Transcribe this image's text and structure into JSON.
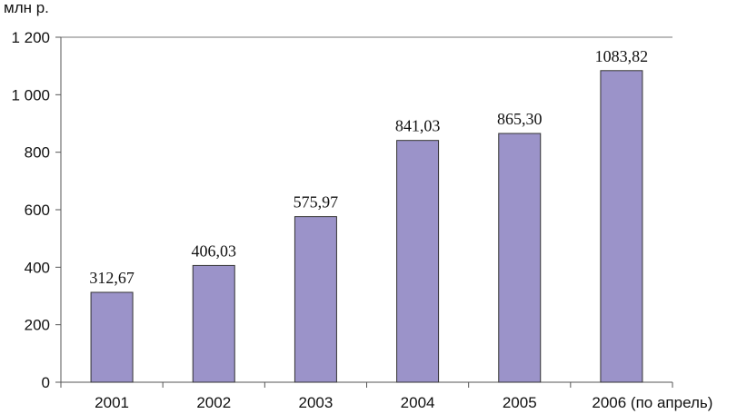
{
  "chart_data": {
    "type": "bar",
    "ylabel": "млн р.",
    "categories": [
      "2001",
      "2002",
      "2003",
      "2004",
      "2005",
      "2006 (по апрель)"
    ],
    "values": [
      312.67,
      406.03,
      575.97,
      841.03,
      865.3,
      1083.82
    ],
    "value_labels": [
      "312,67",
      "406,03",
      "575,97",
      "841,03",
      "865,30",
      "1083,82"
    ],
    "ylim": [
      0,
      1200
    ],
    "yticks": [
      0,
      200,
      400,
      600,
      800,
      1000,
      1200
    ],
    "ytick_labels": [
      "0",
      "200",
      "400",
      "600",
      "800",
      "1 000",
      "1 200"
    ],
    "grid": false,
    "bar_color": "#9b93c9",
    "bar_edge": "#333333"
  }
}
